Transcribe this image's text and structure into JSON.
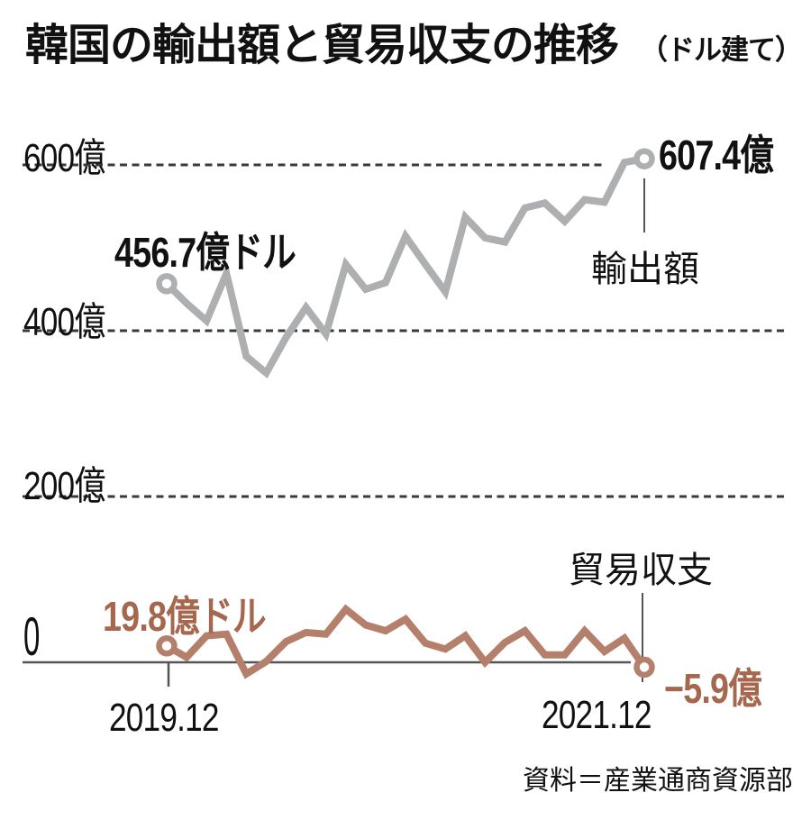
{
  "title": {
    "main": "韓国の輸出額と貿易収支の推移",
    "unit_note": "（ドル建て）"
  },
  "axis": {
    "y600": "600億",
    "y400": "400億",
    "y200": "200億",
    "zero": "0",
    "x_start": "2019.12",
    "x_end": "2021.12"
  },
  "annotations": {
    "export_start_value": "456.7億ドル",
    "export_end_value": "607.4億",
    "export_series_name": "輸出額",
    "trade_start_value": "19.8億ドル",
    "trade_end_value": "−5.9億",
    "trade_series_name": "貿易収支"
  },
  "source": "資料＝産業通商資源部",
  "colors": {
    "export_line": "#aeafb1",
    "trade_line": "#b5806b",
    "trade_label_text": "#a5674e",
    "text": "#111111",
    "grid": "#3a3a3a",
    "axis_line": "#555555",
    "connector": "#555555",
    "marker_fill": "#ffffff"
  },
  "chart_data": {
    "type": "line",
    "title": "韓国の輸出額と貿易収支の推移（ドル建て）",
    "x_start_label": "2019.12",
    "x_end_label": "2021.12",
    "x_interval": "monthly",
    "unit": "億ドル",
    "ylim": [
      -60,
      650
    ],
    "gridlines": [
      600,
      400,
      200,
      0
    ],
    "grid_style": "dashed",
    "legend_position": "inline-callouts",
    "series": [
      {
        "name": "輸出額",
        "color": "#aeafb1",
        "start_label": "456.7億ドル",
        "end_label": "607.4億",
        "values": [
          456.7,
          433,
          412,
          469,
          369,
          349,
          392,
          428,
          396,
          480,
          450,
          458,
          514,
          480,
          447,
          537,
          512,
          507,
          548,
          554,
          532,
          558,
          555,
          603,
          607.4
        ]
      },
      {
        "name": "貿易収支",
        "color": "#b5806b",
        "start_label": "19.8億ドル",
        "end_label": "−5.9億",
        "values": [
          19.8,
          6,
          32,
          34,
          -14,
          1,
          25,
          36,
          34,
          64,
          45,
          38,
          52,
          23,
          16,
          32,
          0,
          24,
          38,
          9,
          9,
          38,
          13,
          29,
          -5.9
        ]
      }
    ]
  }
}
